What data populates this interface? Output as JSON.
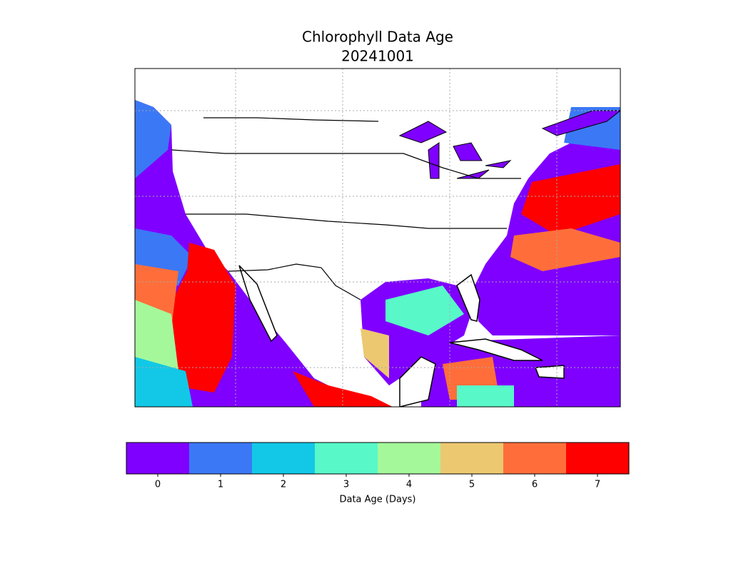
{
  "title": [
    "Chlorophyll Data Age",
    "20241001"
  ],
  "colorbar": {
    "label": "Data Age (Days)",
    "ticks": [
      0,
      1,
      2,
      3,
      4,
      5,
      6,
      7
    ],
    "colors": [
      "#7f00ff",
      "#3b78f5",
      "#12c8e6",
      "#58f8c8",
      "#a4f89a",
      "#ecc870",
      "#ff6e3a",
      "#ff0000"
    ]
  }
}
